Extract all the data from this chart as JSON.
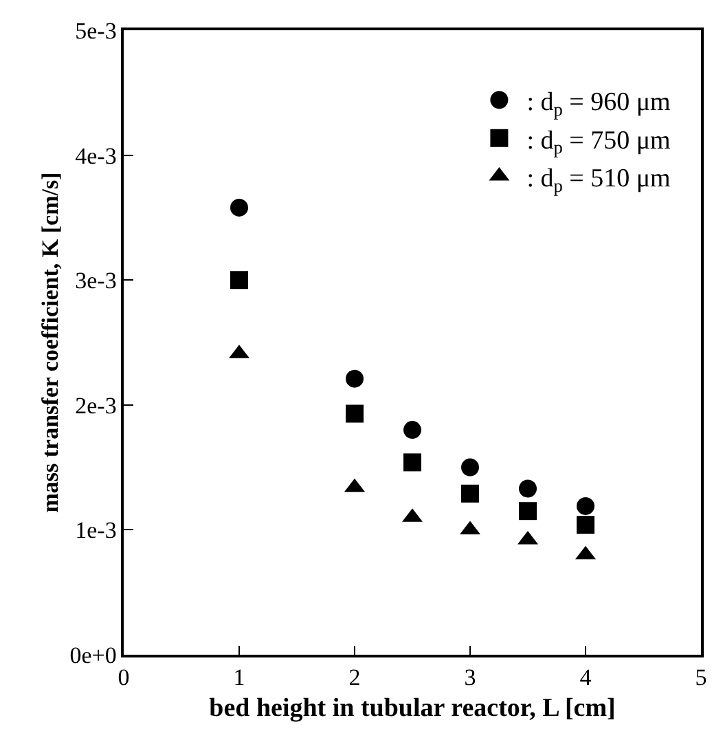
{
  "chart_data": {
    "type": "scatter",
    "xlabel": "bed height in tubular reactor, L [cm]",
    "ylabel": "mass transfer coefficient, K [cm/s]",
    "x": [
      1,
      2,
      2.5,
      3,
      3.5,
      4
    ],
    "series": [
      {
        "name": ": d$_{p}$ = 960 μm",
        "color": "#000000",
        "marker": "circle",
        "values": [
          0.00358,
          0.00221,
          0.0018,
          0.0015,
          0.00133,
          0.00119
        ]
      },
      {
        "name": ": d$_{p}$ = 750 μm",
        "color": "#000000",
        "marker": "square",
        "values": [
          0.003,
          0.00193,
          0.00154,
          0.00129,
          0.00115,
          0.00104
        ]
      },
      {
        "name": ": d$_{p}$ = 510 μm",
        "color": "#000000",
        "marker": "triangle",
        "values": [
          0.00241,
          0.00134,
          0.0011,
          0.001,
          0.00092,
          0.0008
        ]
      }
    ],
    "xlim": [
      0,
      5
    ],
    "xticks": [
      0,
      1,
      2,
      3,
      4,
      5
    ],
    "ylim": [
      0,
      0.005
    ],
    "yticks": [
      {
        "value": 0,
        "label": "0e+0"
      },
      {
        "value": 0.001,
        "label": "1e-3"
      },
      {
        "value": 0.002,
        "label": "2e-3"
      },
      {
        "value": 0.003,
        "label": "3e-3"
      },
      {
        "value": 0.004,
        "label": "4e-3"
      },
      {
        "value": 0.005,
        "label": "5e-3"
      }
    ],
    "legend": "top right"
  }
}
